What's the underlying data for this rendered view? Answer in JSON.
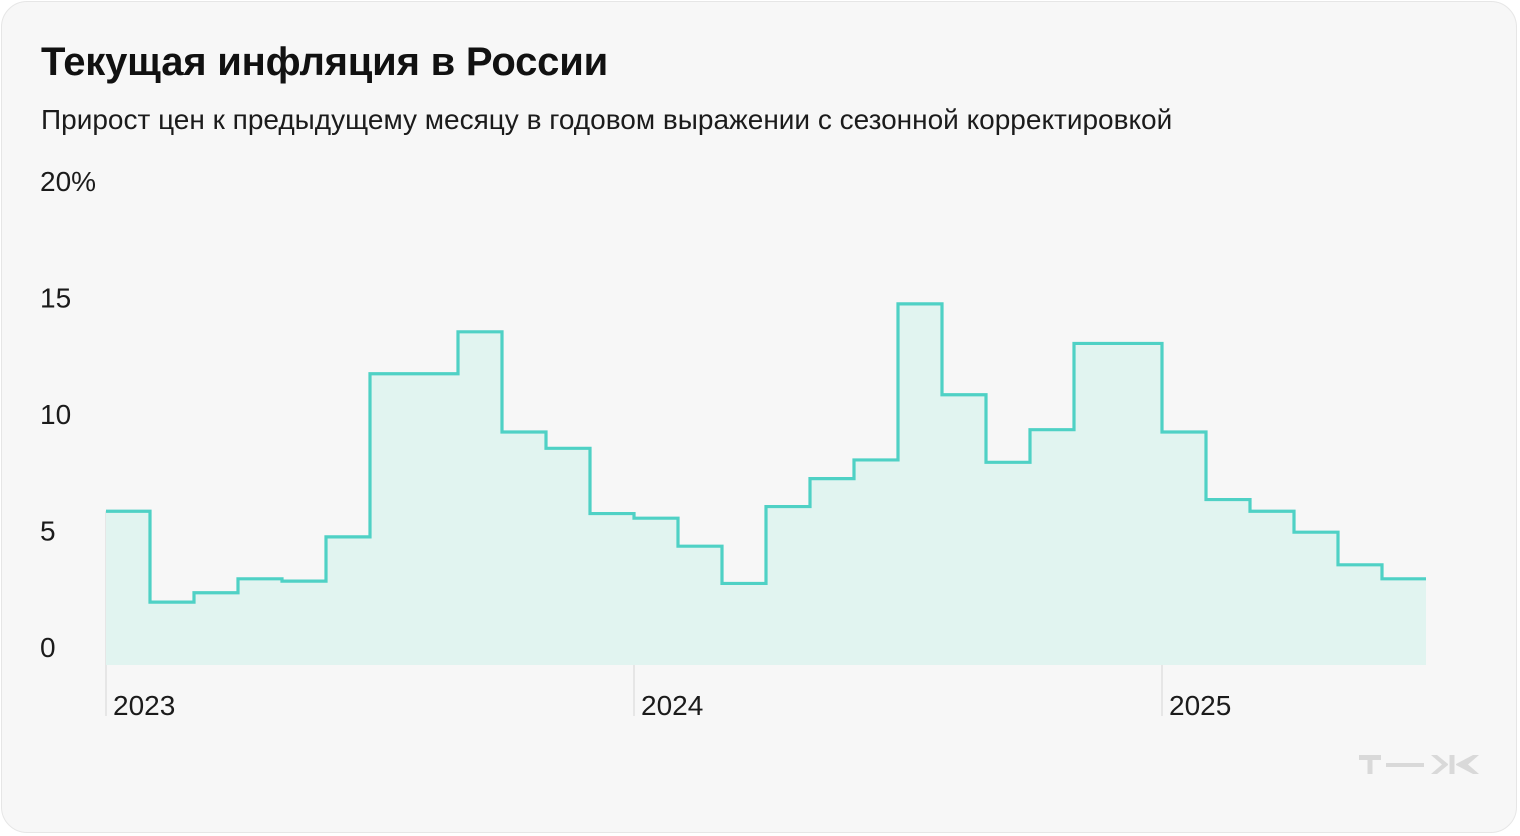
{
  "title": "Текущая инфляция в России",
  "subtitle": "Прирост цен к предыдущему месяцу в годовом выражении с сезонной корректировкой",
  "logo": "т—ж",
  "colors": {
    "line": "#4fd1c5",
    "fill": "#e1f4f0",
    "background": "#f7f7f7",
    "text": "#1b1b1b"
  },
  "chart_data": {
    "type": "line",
    "step": true,
    "title": "Текущая инфляция в России",
    "subtitle": "Прирост цен к предыдущему месяцу в годовом выражении с сезонной корректировкой",
    "xlabel": "",
    "ylabel": "",
    "ylim": [
      0,
      20
    ],
    "yticks": [
      0,
      5,
      10,
      15,
      20
    ],
    "ytick_labels": [
      "0",
      "5",
      "10",
      "15",
      "20%"
    ],
    "x_labels": [
      "2023",
      "2024",
      "2025"
    ],
    "x": [
      "2023-01",
      "2023-02",
      "2023-03",
      "2023-04",
      "2023-05",
      "2023-06",
      "2023-07",
      "2023-08",
      "2023-09",
      "2023-10",
      "2023-11",
      "2023-12",
      "2024-01",
      "2024-02",
      "2024-03",
      "2024-04",
      "2024-05",
      "2024-06",
      "2024-07",
      "2024-08",
      "2024-09",
      "2024-10",
      "2024-11",
      "2024-12",
      "2025-01",
      "2025-02",
      "2025-03",
      "2025-04",
      "2025-05",
      "2025-06"
    ],
    "series": [
      {
        "values": [
          6.6,
          2.7,
          3.1,
          3.7,
          3.6,
          5.5,
          12.5,
          12.5,
          14.3,
          10.0,
          9.3,
          6.5,
          6.3,
          5.1,
          3.5,
          6.8,
          8.0,
          8.8,
          15.5,
          11.6,
          8.7,
          10.1,
          13.8,
          13.8,
          10.0,
          7.1,
          6.6,
          5.7,
          4.3,
          3.7
        ]
      }
    ],
    "grid": false,
    "legend": "none"
  }
}
